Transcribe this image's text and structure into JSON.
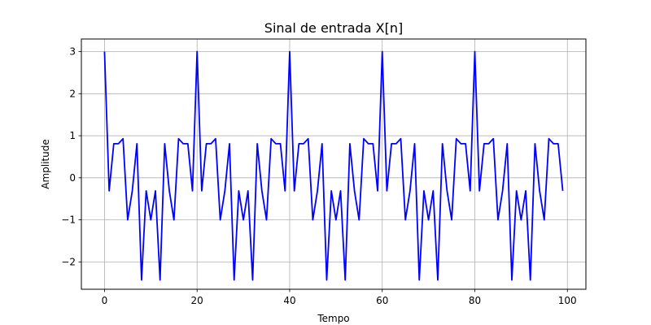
{
  "chart_data": {
    "type": "line",
    "title": "Sinal de entrada X[n]",
    "xlabel": "Tempo",
    "ylabel": "Amplitude",
    "xlim": [
      -5,
      104
    ],
    "ylim": [
      -2.65,
      3.3
    ],
    "x_ticks": [
      0,
      20,
      40,
      60,
      80,
      100
    ],
    "y_ticks": [
      3,
      2,
      1,
      0,
      -1,
      -2
    ],
    "x_tick_labels": [
      "0",
      "20",
      "40",
      "60",
      "80",
      "100"
    ],
    "y_tick_labels": [
      "3",
      "2",
      "1",
      "0",
      "−1",
      "−2"
    ],
    "grid": true,
    "series": [
      {
        "color": "#0000ff",
        "x": [
          0,
          1,
          2,
          3,
          4,
          5,
          6,
          7,
          8,
          9,
          10,
          11,
          12,
          13,
          14,
          15,
          16,
          17,
          18,
          19,
          20,
          21,
          22,
          23,
          24,
          25,
          26,
          27,
          28,
          29,
          30,
          31,
          32,
          33,
          34,
          35,
          36,
          37,
          38,
          39,
          40,
          41,
          42,
          43,
          44,
          45,
          46,
          47,
          48,
          49,
          50,
          51,
          52,
          53,
          54,
          55,
          56,
          57,
          58,
          59,
          60,
          61,
          62,
          63,
          64,
          65,
          66,
          67,
          68,
          69,
          70,
          71,
          72,
          73,
          74,
          75,
          76,
          77,
          78,
          79,
          80,
          81,
          82,
          83,
          84,
          85,
          86,
          87,
          88,
          89,
          90,
          91,
          92,
          93,
          94,
          95,
          96,
          97,
          98,
          99
        ],
        "values": [
          3,
          -0.31,
          0.81,
          0.81,
          0.93,
          -1,
          -0.31,
          0.81,
          -2.43,
          -0.31,
          -1,
          -0.31,
          -2.43,
          0.81,
          -0.31,
          -1,
          0.93,
          0.81,
          0.81,
          -0.31,
          3,
          -0.31,
          0.81,
          0.81,
          0.93,
          -1,
          -0.31,
          0.81,
          -2.43,
          -0.31,
          -1,
          -0.31,
          -2.43,
          0.81,
          -0.31,
          -1,
          0.93,
          0.81,
          0.81,
          -0.31,
          3,
          -0.31,
          0.81,
          0.81,
          0.93,
          -1,
          -0.31,
          0.81,
          -2.43,
          -0.31,
          -1,
          -0.31,
          -2.43,
          0.81,
          -0.31,
          -1,
          0.93,
          0.81,
          0.81,
          -0.31,
          3,
          -0.31,
          0.81,
          0.81,
          0.93,
          -1,
          -0.31,
          0.81,
          -2.43,
          -0.31,
          -1,
          -0.31,
          -2.43,
          0.81,
          -0.31,
          -1,
          0.93,
          0.81,
          0.81,
          -0.31,
          3,
          -0.31,
          0.81,
          0.81,
          0.93,
          -1,
          -0.31,
          0.81,
          -2.43,
          -0.31,
          -1,
          -0.31,
          -2.43,
          0.81,
          -0.31,
          -1,
          0.93,
          0.81,
          0.81,
          -0.31
        ]
      }
    ]
  }
}
